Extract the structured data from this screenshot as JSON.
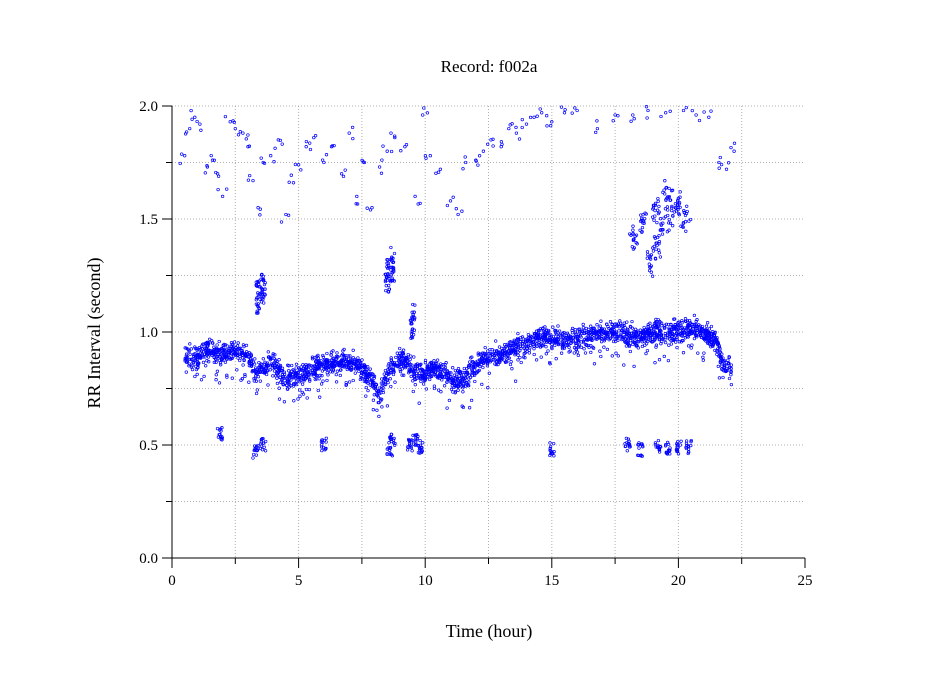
{
  "chart_data": {
    "type": "scatter",
    "title": "Record:  f002a",
    "xlabel": "Time (hour)",
    "ylabel": "RR Interval (second)",
    "xlim": [
      0,
      25
    ],
    "ylim": [
      0.0,
      2.0
    ],
    "xticks": [
      0,
      5,
      10,
      15,
      20,
      25
    ],
    "xtick_labels": [
      "0",
      "5",
      "10",
      "15",
      "20",
      "25"
    ],
    "xminor": [
      2.5,
      7.5,
      12.5,
      17.5,
      22.5
    ],
    "yticks": [
      0.0,
      0.5,
      1.0,
      1.5,
      2.0
    ],
    "ytick_labels": [
      "0.0",
      "0.5",
      "1.0",
      "1.5",
      "2.0"
    ],
    "yminor": [
      0.25,
      0.75,
      1.25,
      1.75
    ],
    "grid": true,
    "marker_color": "#0000ff",
    "series": [
      {
        "style": "band",
        "points": [
          [
            0.5,
            0.9
          ],
          [
            1.0,
            0.88
          ],
          [
            1.5,
            0.93
          ],
          [
            2.0,
            0.9
          ],
          [
            2.5,
            0.92
          ],
          [
            3.0,
            0.9
          ],
          [
            3.3,
            0.82
          ],
          [
            3.6,
            0.85
          ],
          [
            4.0,
            0.86
          ],
          [
            4.4,
            0.8
          ],
          [
            4.8,
            0.8
          ],
          [
            5.3,
            0.82
          ],
          [
            5.8,
            0.85
          ],
          [
            6.3,
            0.86
          ],
          [
            6.8,
            0.87
          ],
          [
            7.3,
            0.86
          ],
          [
            7.8,
            0.8
          ],
          [
            8.2,
            0.72
          ],
          [
            8.6,
            0.84
          ],
          [
            9.0,
            0.88
          ],
          [
            9.5,
            0.84
          ],
          [
            9.9,
            0.8
          ],
          [
            10.3,
            0.84
          ],
          [
            10.7,
            0.83
          ],
          [
            11.1,
            0.78
          ],
          [
            11.5,
            0.79
          ],
          [
            12.0,
            0.86
          ],
          [
            12.5,
            0.89
          ],
          [
            13.0,
            0.9
          ],
          [
            13.5,
            0.93
          ],
          [
            14.0,
            0.95
          ],
          [
            14.5,
            0.98
          ],
          [
            15.0,
            0.98
          ],
          [
            15.5,
            0.96
          ],
          [
            16.0,
            0.97
          ],
          [
            16.5,
            0.99
          ],
          [
            17.0,
            1.0
          ],
          [
            17.5,
            1.0
          ],
          [
            18.0,
            0.99
          ],
          [
            18.5,
            0.98
          ],
          [
            19.0,
            1.0
          ],
          [
            19.5,
            1.0
          ],
          [
            20.0,
            1.01
          ],
          [
            20.5,
            1.02
          ],
          [
            21.0,
            1.0
          ],
          [
            21.5,
            0.96
          ],
          [
            21.8,
            0.84
          ],
          [
            22.1,
            0.84
          ]
        ],
        "spread": 0.07
      },
      {
        "style": "ectopic_long",
        "points": [
          [
            0.5,
            1.78
          ],
          [
            0.7,
            1.9
          ],
          [
            0.9,
            1.95
          ],
          [
            1.1,
            1.92
          ],
          [
            1.4,
            1.73
          ],
          [
            1.6,
            1.76
          ],
          [
            1.8,
            1.7
          ],
          [
            2.0,
            1.6
          ],
          [
            2.3,
            1.93
          ],
          [
            2.5,
            1.9
          ],
          [
            2.8,
            1.88
          ],
          [
            3.0,
            1.82
          ],
          [
            3.2,
            1.67
          ],
          [
            3.4,
            1.55
          ],
          [
            3.6,
            1.75
          ],
          [
            3.9,
            1.78
          ],
          [
            4.2,
            1.85
          ],
          [
            4.5,
            1.52
          ],
          [
            4.8,
            1.66
          ],
          [
            5.0,
            1.74
          ],
          [
            5.3,
            1.82
          ],
          [
            5.6,
            1.86
          ],
          [
            6.0,
            1.75
          ],
          [
            6.3,
            1.82
          ],
          [
            6.7,
            1.7
          ],
          [
            7.0,
            1.88
          ],
          [
            7.3,
            1.6
          ],
          [
            7.6,
            1.75
          ],
          [
            7.9,
            1.55
          ],
          [
            8.2,
            1.73
          ],
          [
            8.5,
            1.8
          ],
          [
            8.8,
            1.86
          ],
          [
            9.2,
            1.82
          ],
          [
            9.6,
            1.6
          ],
          [
            9.9,
            1.96
          ],
          [
            10.2,
            1.78
          ],
          [
            10.6,
            1.72
          ],
          [
            11.0,
            1.58
          ],
          [
            11.3,
            1.52
          ],
          [
            11.6,
            1.75
          ],
          [
            12.0,
            1.76
          ],
          [
            12.3,
            1.8
          ],
          [
            12.6,
            1.85
          ],
          [
            13.0,
            1.82
          ],
          [
            13.3,
            1.9
          ],
          [
            13.6,
            1.88
          ],
          [
            14.0,
            1.92
          ],
          [
            14.3,
            1.95
          ],
          [
            14.6,
            1.97
          ],
          [
            15.0,
            1.93
          ],
          [
            15.5,
            1.97
          ],
          [
            16.0,
            1.98
          ],
          [
            16.8,
            1.9
          ],
          [
            17.5,
            1.96
          ],
          [
            18.2,
            1.96
          ],
          [
            18.8,
            1.98
          ],
          [
            19.5,
            1.97
          ],
          [
            20.2,
            1.98
          ],
          [
            20.7,
            1.96
          ],
          [
            21.2,
            1.95
          ],
          [
            21.6,
            1.75
          ],
          [
            21.9,
            1.72
          ],
          [
            22.2,
            1.8
          ]
        ],
        "spread": 0.07,
        "density": 1.5
      },
      {
        "style": "cluster",
        "points": [
          [
            18.2,
            1.42
          ],
          [
            18.6,
            1.5
          ],
          [
            19.1,
            1.55
          ],
          [
            19.4,
            1.48
          ],
          [
            19.7,
            1.52
          ],
          [
            20.0,
            1.55
          ],
          [
            20.3,
            1.5
          ],
          [
            19.2,
            1.38
          ],
          [
            19.6,
            1.62
          ],
          [
            18.9,
            1.3
          ]
        ],
        "spread": 0.1
      },
      {
        "style": "spikes",
        "points": [
          [
            3.4,
            1.15
          ],
          [
            3.6,
            1.2
          ],
          [
            8.5,
            1.25
          ],
          [
            8.7,
            1.3
          ],
          [
            9.5,
            1.05
          ]
        ],
        "spread": 0.08
      },
      {
        "style": "short",
        "points": [
          [
            1.9,
            0.55
          ],
          [
            3.3,
            0.47
          ],
          [
            3.6,
            0.5
          ],
          [
            6.0,
            0.5
          ],
          [
            8.6,
            0.48
          ],
          [
            8.7,
            0.52
          ],
          [
            9.4,
            0.5
          ],
          [
            9.6,
            0.52
          ],
          [
            9.8,
            0.49
          ],
          [
            15.0,
            0.48
          ],
          [
            18.0,
            0.5
          ],
          [
            18.5,
            0.48
          ],
          [
            19.2,
            0.49
          ],
          [
            19.6,
            0.49
          ],
          [
            20.0,
            0.49
          ],
          [
            20.4,
            0.49
          ]
        ],
        "spread": 0.03
      }
    ]
  }
}
